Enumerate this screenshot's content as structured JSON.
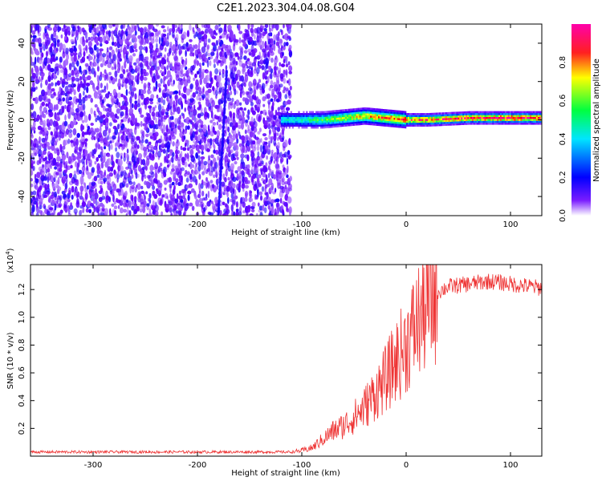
{
  "figure": {
    "title": "C2E1.2023.304.04.08.G04"
  },
  "chart_data": [
    {
      "type": "heatmap",
      "xlabel": "Height of straight line (km)",
      "ylabel": "Frequency (Hz)",
      "xlim": [
        -360,
        130
      ],
      "ylim": [
        -50,
        50
      ],
      "x_ticks": [
        -300,
        -200,
        -100,
        0,
        100
      ],
      "y_ticks": [
        -40,
        -20,
        0,
        20,
        40
      ],
      "colorbar": {
        "label": "Normalized spectral amplitude",
        "range": [
          0,
          1
        ],
        "ticks": [
          "0.0",
          "0.2",
          "0.4",
          "0.6",
          "0.8"
        ],
        "colors": [
          "#ffffff",
          "#6a00ff",
          "#0000ff",
          "#00e5ff",
          "#00ff40",
          "#ffff00",
          "#ff0000",
          "#ff00aa"
        ]
      },
      "noise_region": {
        "x": [
          -360,
          -110
        ],
        "y": [
          -50,
          50
        ],
        "amplitude": 0.15
      },
      "carrier_ridge": {
        "x": [
          -120,
          -100,
          -80,
          -60,
          -40,
          -20,
          0,
          20,
          40,
          60,
          80,
          100,
          120,
          130
        ],
        "freq": [
          0,
          0,
          0,
          1,
          2,
          1,
          0,
          0,
          0.5,
          1,
          1,
          1,
          1,
          1
        ],
        "amplitude": [
          0.45,
          0.5,
          0.6,
          0.7,
          0.8,
          0.85,
          0.9,
          0.92,
          0.95,
          0.95,
          0.98,
          1.0,
          0.95,
          0.95
        ]
      }
    },
    {
      "type": "line",
      "xlabel": "Height of straight line (km)",
      "ylabel": "SNR (10 * v/v)",
      "y_multiplier": "(x10",
      "y_multiplier_exp": "4",
      "y_multiplier_close": ")",
      "xlim": [
        -360,
        130
      ],
      "ylim": [
        0,
        1.38
      ],
      "x_ticks": [
        -300,
        -200,
        -100,
        0,
        100
      ],
      "y_ticks": [
        "0.2",
        "0.4",
        "0.6",
        "0.8",
        "1.0",
        "1.2"
      ],
      "color": "#ee3333",
      "series": [
        {
          "x": [
            -360,
            -300,
            -200,
            -110,
            -100,
            -90,
            -80,
            -70,
            -60,
            -50,
            -40,
            -30,
            -20,
            -10,
            0,
            10,
            20,
            30,
            40,
            60,
            80,
            100,
            120,
            130
          ],
          "y": [
            0.03,
            0.03,
            0.03,
            0.03,
            0.04,
            0.06,
            0.12,
            0.18,
            0.22,
            0.28,
            0.35,
            0.45,
            0.55,
            0.68,
            0.8,
            0.95,
            1.08,
            1.18,
            1.22,
            1.24,
            1.26,
            1.24,
            1.22,
            1.21
          ]
        }
      ]
    }
  ]
}
